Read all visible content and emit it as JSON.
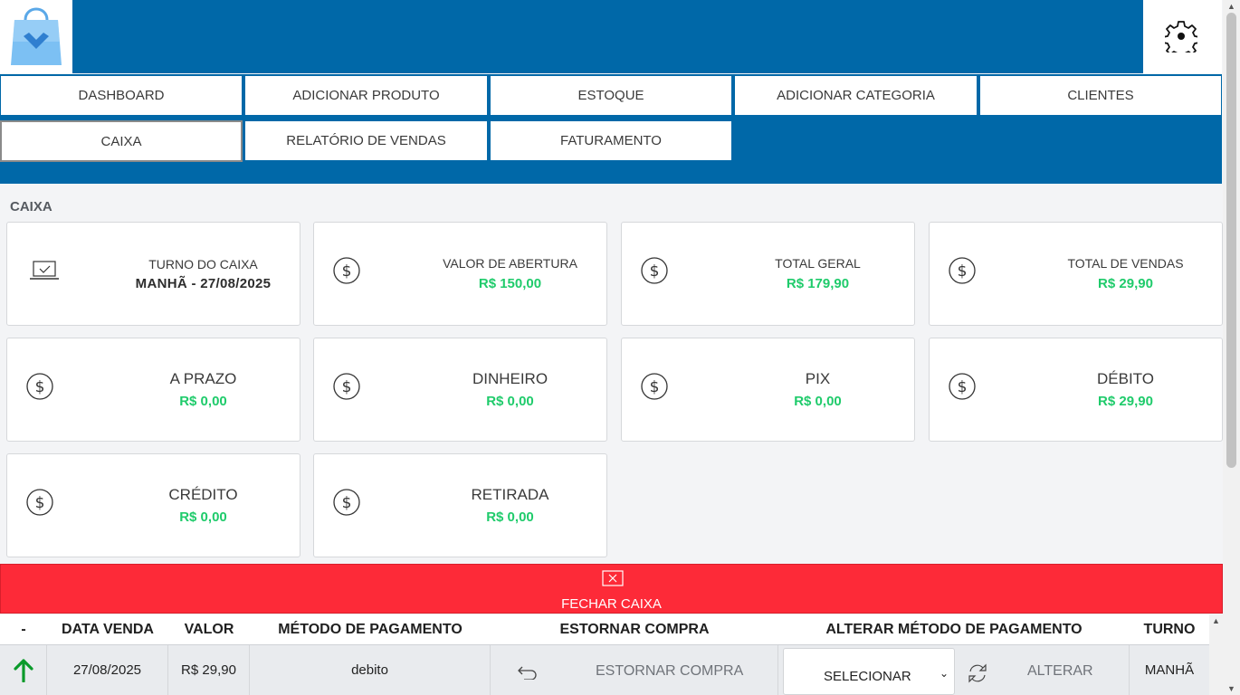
{
  "header": {
    "logo_icon": "shopping-bag-logo-icon",
    "settings_icon": "gear-icon"
  },
  "nav": {
    "row1": [
      "DASHBOARD",
      "ADICIONAR PRODUTO",
      "ESTOQUE",
      "ADICIONAR CATEGORIA",
      "CLIENTES"
    ],
    "row2": [
      "CAIXA",
      "RELATÓRIO DE VENDAS",
      "FATURAMENTO"
    ],
    "active": "CAIXA"
  },
  "section": {
    "title": "CAIXA"
  },
  "cards": [
    {
      "label": "TURNO DO CAIXA",
      "value": "MANHÃ - 27/08/2025",
      "icon": "laptop-check-icon"
    },
    {
      "label": "VALOR DE ABERTURA",
      "value": "R$ 150,00",
      "icon": "dollar-circle-icon"
    },
    {
      "label": "TOTAL GERAL",
      "value": "R$ 179,90",
      "icon": "dollar-circle-icon"
    },
    {
      "label": "TOTAL DE VENDAS",
      "value": "R$ 29,90",
      "icon": "dollar-circle-icon"
    },
    {
      "label": "A PRAZO",
      "value": "R$ 0,00",
      "icon": "dollar-circle-icon"
    },
    {
      "label": "DINHEIRO",
      "value": "R$ 0,00",
      "icon": "dollar-circle-icon"
    },
    {
      "label": "PIX",
      "value": "R$ 0,00",
      "icon": "dollar-circle-icon"
    },
    {
      "label": "DÉBITO",
      "value": "R$ 29,90",
      "icon": "dollar-circle-icon"
    },
    {
      "label": "CRÉDITO",
      "value": "R$ 0,00",
      "icon": "dollar-circle-icon"
    },
    {
      "label": "RETIRADA",
      "value": "R$ 0,00",
      "icon": "dollar-circle-icon"
    }
  ],
  "close_button": {
    "label": "FECHAR CAIXA",
    "icon": "close-box-icon"
  },
  "table": {
    "headers": [
      "-",
      "DATA VENDA",
      "VALOR",
      "MÉTODO DE PAGAMENTO",
      "ESTORNAR COMPRA",
      "ALTERAR MÉTODO DE PAGAMENTO",
      "TURNO"
    ],
    "rows": [
      {
        "indicator_icon": "arrow-up-icon",
        "date": "27/08/2025",
        "value": "R$ 29,90",
        "method": "debito",
        "refund_label": "ESTORNAR COMPRA",
        "select_value": "SELECIONAR",
        "change_label": "ALTERAR",
        "shift": "MANHÃ"
      }
    ]
  },
  "colors": {
    "brand": "#0068a8",
    "danger": "#fd2a38",
    "positive": "#1fcb6b"
  }
}
